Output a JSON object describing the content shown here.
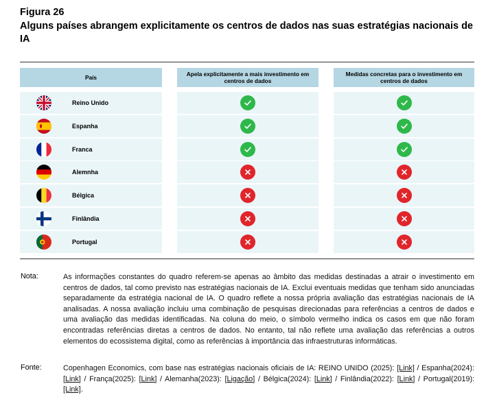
{
  "figure": {
    "label": "Figura 26",
    "title": "Alguns países abrangem explicitamente os centros de dados nas suas estratégias nacionais de IA"
  },
  "table": {
    "headers": {
      "country": "País",
      "col1": "Apela explicitamente a mais investimento em centros de dados",
      "col2": "Medidas concretas para o investimento em centros de dados"
    },
    "rows": [
      {
        "country": "Reino Unido",
        "flag": "uk-flag-icon",
        "col1": true,
        "col2": true
      },
      {
        "country": "Espanha",
        "flag": "spain-flag-icon",
        "col1": true,
        "col2": true
      },
      {
        "country": "Franca",
        "flag": "france-flag-icon",
        "col1": true,
        "col2": true
      },
      {
        "country": "Alemnha",
        "flag": "germany-flag-icon",
        "col1": false,
        "col2": false
      },
      {
        "country": "Bélgica",
        "flag": "belgium-flag-icon",
        "col1": false,
        "col2": false
      },
      {
        "country": "Finlândia",
        "flag": "finland-flag-icon",
        "col1": false,
        "col2": false
      },
      {
        "country": "Portugal",
        "flag": "portugal-flag-icon",
        "col1": false,
        "col2": false
      }
    ],
    "colors": {
      "header_bg": "#b4d7e3",
      "row_bg": "#eaf5f8",
      "check": "#2eb84a",
      "cross": "#e0252b"
    }
  },
  "note": {
    "label": "Nota:",
    "text": "As informações constantes do quadro referem-se apenas ao âmbito das medidas destinadas a atrair o investimento em centros de dados, tal como previsto nas estratégias nacionais de IA. Exclui eventuais medidas que tenham sido anunciadas separadamente da estratégia nacional de IA. O quadro reflete a nossa própria avaliação das estratégias nacionais de IA analisadas. A nossa avaliação incluiu uma combinação de pesquisas direcionadas para referências a centros de dados e uma avaliação das medidas identificadas. Na coluna do meio, o símbolo vermelho indica os casos em que não foram encontradas referências diretas a centros de dados. No entanto, tal não reflete uma avaliação das referências a outros elementos do ecossistema digital, como as referências à importância das infraestruturas informáticas."
  },
  "source": {
    "label": "Fonte:",
    "intro": "Copenhagen Economics, com base nas estratégias nacionais oficiais de IA: REINO UNIDO (2025): ",
    "items": [
      {
        "prefix": "",
        "link": "[Link]",
        "sep": " / "
      },
      {
        "prefix": "Espanha(2024): ",
        "link": "[Link]",
        "sep": " / "
      },
      {
        "prefix": "França(2025): ",
        "link": "[Link]",
        "sep": " / "
      },
      {
        "prefix": "Alemanha(2023): ",
        "link": "[Ligação]",
        "sep": " / "
      },
      {
        "prefix": "Bélgica(2024): ",
        "link": "[Link]",
        "sep": " / "
      },
      {
        "prefix": "Finlândia(2022): ",
        "link": "[Link]",
        "sep": " / "
      },
      {
        "prefix": "Portugal(2019): ",
        "link": "[Link]",
        "sep": "."
      }
    ]
  }
}
